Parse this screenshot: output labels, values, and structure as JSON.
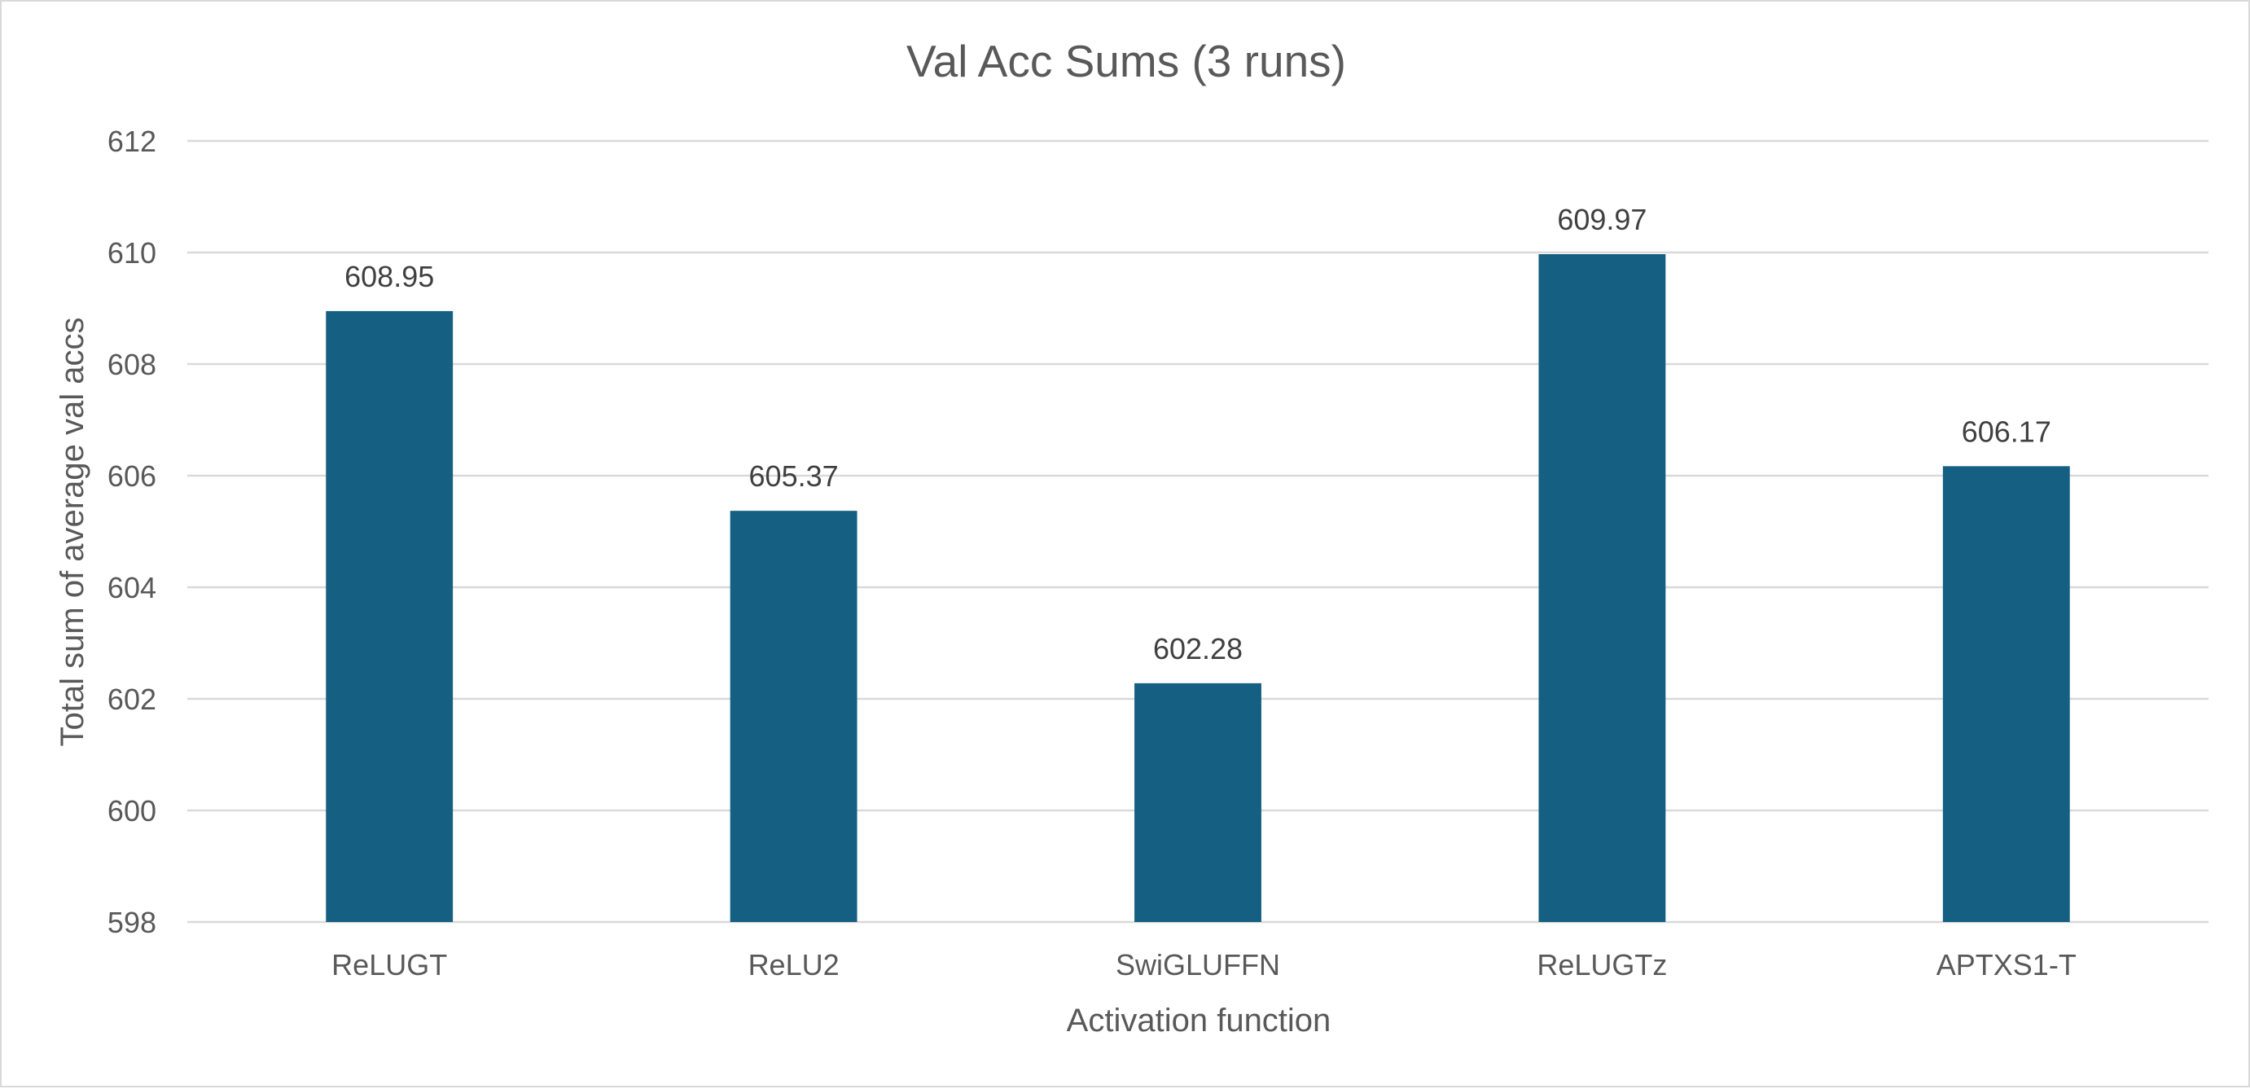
{
  "chart_data": {
    "type": "bar",
    "title": "Val Acc Sums (3 runs)",
    "xlabel": "Activation function",
    "ylabel": "Total sum of average val accs",
    "categories": [
      "ReLUGT",
      "ReLU2",
      "SwiGLUFFN",
      "ReLUGTz",
      "APTXS1-T"
    ],
    "values": [
      608.95,
      605.37,
      602.28,
      609.97,
      606.17
    ],
    "value_labels": [
      "608.95",
      "605.37",
      "602.28",
      "609.97",
      "606.17"
    ],
    "ylim": [
      598,
      612
    ],
    "yticks": [
      598,
      600,
      602,
      604,
      606,
      608,
      610,
      612
    ],
    "ytick_labels": [
      "598",
      "600",
      "602",
      "604",
      "606",
      "608",
      "610",
      "612"
    ],
    "grid": true,
    "legend": "none",
    "bar_color": "#156082"
  }
}
